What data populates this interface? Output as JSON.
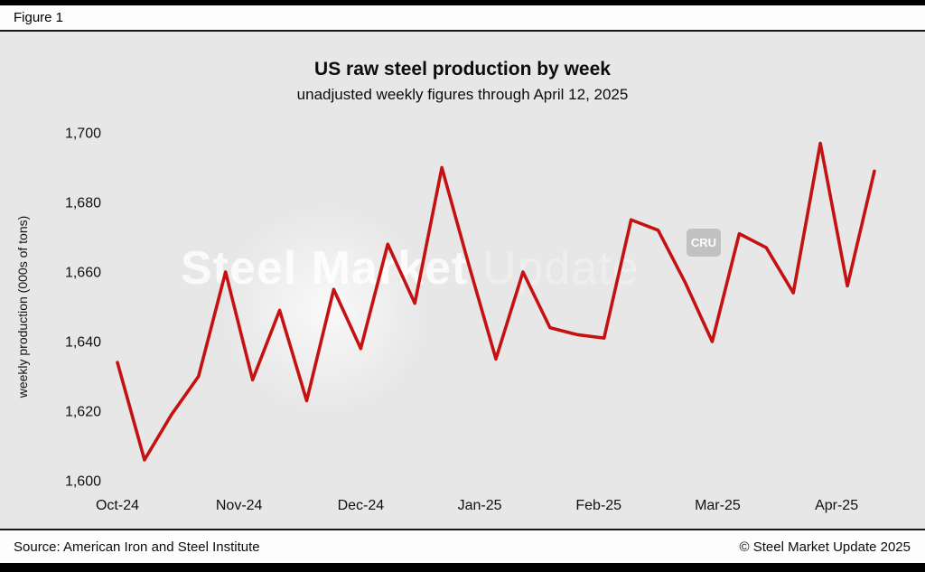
{
  "header": {
    "figure_label": "Figure 1"
  },
  "watermark": {
    "bold": "Steel Market",
    "light": "Update",
    "logo": "CRU"
  },
  "footer": {
    "source": "Source: American Iron and Steel Institute",
    "copyright": "© Steel Market Update 2025"
  },
  "colors": {
    "line": "#c41212",
    "chart_background": "#e7e7e7",
    "text": "#111111"
  },
  "chart_data": {
    "type": "line",
    "title": "US raw steel production by week",
    "subtitle": "unadjusted weekly figures through April 12, 2025",
    "xlabel": "",
    "ylabel": "weekly production (000s of tons)",
    "ylim": [
      1600,
      1700
    ],
    "yticks": [
      1600,
      1620,
      1640,
      1660,
      1680,
      1700
    ],
    "ytick_labels": [
      "1,600",
      "1,620",
      "1,640",
      "1,660",
      "1,680",
      "1,700"
    ],
    "x_tick_labels": [
      "Oct-24",
      "Nov-24",
      "Dec-24",
      "Jan-25",
      "Feb-25",
      "Mar-25",
      "Apr-25"
    ],
    "x_tick_positions": [
      0,
      4.5,
      9,
      13.4,
      17.8,
      22.2,
      26.6
    ],
    "grid": false,
    "legend": "none",
    "line_color": "#c41212",
    "series": [
      {
        "name": "US weekly raw steel production (000s of tons)",
        "values": [
          1634,
          1606,
          1619,
          1630,
          1660,
          1629,
          1649,
          1623,
          1655,
          1638,
          1668,
          1651,
          1690,
          1662,
          1635,
          1660,
          1644,
          1642,
          1641,
          1675,
          1672,
          1657,
          1640,
          1671,
          1667,
          1654,
          1697,
          1656,
          1689
        ]
      }
    ]
  }
}
